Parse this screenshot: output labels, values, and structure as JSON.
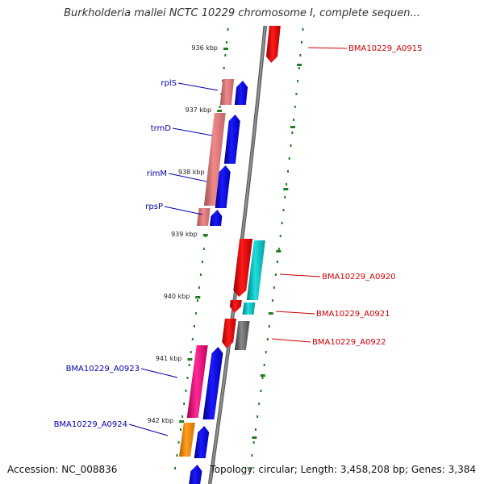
{
  "header": {
    "title": "Burkholderia mallei NCTC 10229 chromosome I, complete sequen..."
  },
  "footer": {
    "accession": "Accession: NC_008836",
    "summary": "Topology: circular; Length: 3,458,208 bp; Genes: 3,384"
  },
  "colors": {
    "backbone": "#8c8c8c",
    "tick": "#1f7f1f",
    "forward_label": "#0000aa",
    "reverse_label": "#cc0000"
  },
  "ticks": [
    "936 kbp",
    "937 kbp",
    "938 kbp",
    "939 kbp",
    "940 kbp",
    "941 kbp",
    "942 kbp"
  ],
  "genes": [
    {
      "name": "rplS",
      "strand": "-"
    },
    {
      "name": "trmD",
      "strand": "-"
    },
    {
      "name": "rimM",
      "strand": "-"
    },
    {
      "name": "rpsP",
      "strand": "-"
    },
    {
      "name": "BMA10229_A0915",
      "strand": "+"
    },
    {
      "name": "BMA10229_A0920",
      "strand": "+"
    },
    {
      "name": "BMA10229_A0921",
      "strand": "+"
    },
    {
      "name": "BMA10229_A0922",
      "strand": "+"
    },
    {
      "name": "BMA10229_A0923",
      "strand": "-"
    },
    {
      "name": "BMA10229_A0924",
      "strand": "-"
    }
  ]
}
